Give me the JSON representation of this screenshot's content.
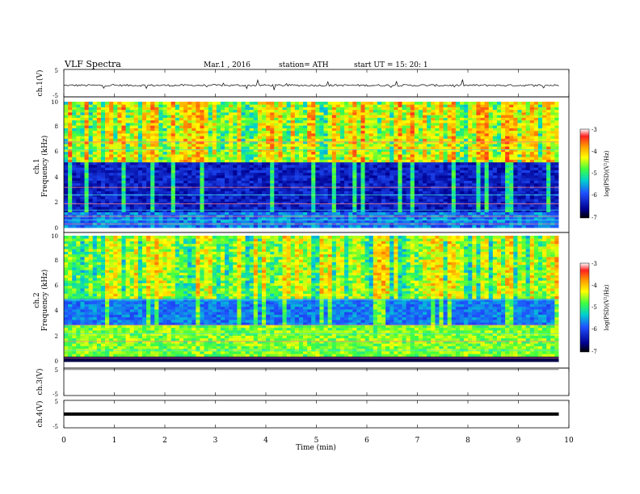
{
  "header": {
    "title": "VLF  Spectra",
    "date": "Mar.1  , 2016",
    "station": "station= ATH",
    "start": "start  UT  =    15: 20: 1"
  },
  "colorbar": {
    "label": "log(PSD)(V²/Hz)",
    "ticks": [
      "-3",
      "-4",
      "-5",
      "-6",
      "-7"
    ],
    "colors": [
      "#ffffff",
      "#ff2020",
      "#ffa000",
      "#ffff00",
      "#40ff40",
      "#00d0d0",
      "#2050ff",
      "#000090",
      "#000000"
    ]
  },
  "chart_data": [
    {
      "type": "line",
      "panel": "ch1-voltage",
      "ylabel": "ch.1(V)",
      "ylim": [
        -5,
        5
      ],
      "yticks": [
        "5",
        "-5"
      ],
      "baseline": -0.8,
      "xlim": [
        0,
        10
      ],
      "data_end_min": 9.8
    },
    {
      "type": "heatmap",
      "panel": "ch1-spectrogram",
      "ylabel": [
        "ch.1",
        "Frequency  (kHz)"
      ],
      "ylim": [
        0,
        10
      ],
      "yticks": [
        "0",
        "2",
        "4",
        "6",
        "8",
        "10"
      ],
      "xlim": [
        0,
        10
      ],
      "zlim": [
        -7,
        -3
      ],
      "data_end_min": 9.8
    },
    {
      "type": "heatmap",
      "panel": "ch2-spectrogram",
      "ylabel": [
        "ch.2",
        "Frequency  (kHz)"
      ],
      "ylim": [
        0,
        10
      ],
      "yticks": [
        "0",
        "2",
        "4",
        "6",
        "8",
        "10"
      ],
      "xlim": [
        0,
        10
      ],
      "zlim": [
        -7,
        -3
      ],
      "data_end_min": 9.8
    },
    {
      "type": "line",
      "panel": "ch3-voltage",
      "ylabel": "ch.3(V)",
      "ylim": [
        -5,
        5
      ],
      "yticks": [
        "5",
        "-5"
      ],
      "baseline": 4.5,
      "xlim": [
        0,
        10
      ],
      "data_end_min": 9.8
    },
    {
      "type": "line",
      "panel": "ch4-voltage",
      "ylabel": "ch.4(V)",
      "ylim": [
        -5,
        5
      ],
      "yticks": [
        "5",
        "-5"
      ],
      "baseline": 0,
      "xlim": [
        0,
        10
      ],
      "data_end_min": 9.8,
      "xlabel": "Time  (min)",
      "xticks": [
        "0",
        "1",
        "2",
        "3",
        "4",
        "5",
        "6",
        "7",
        "8",
        "9",
        "10"
      ]
    }
  ]
}
